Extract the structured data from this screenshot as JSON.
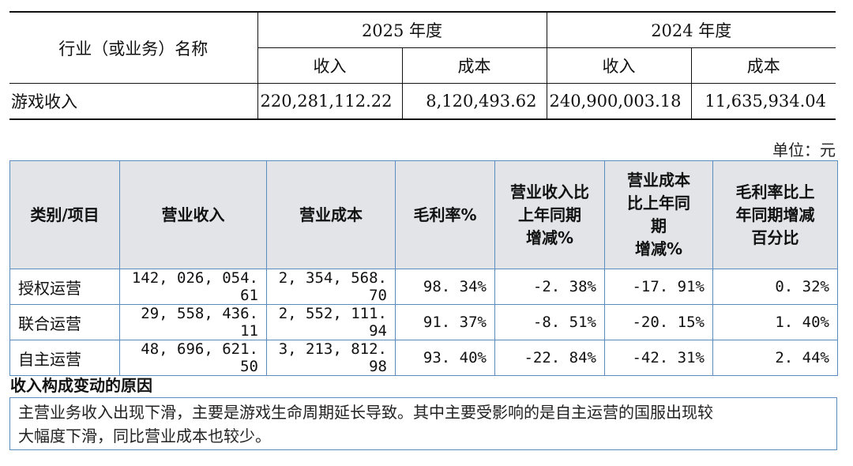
{
  "table1": {
    "row_header": "行业（或业务）名称",
    "years": [
      "2025 年度",
      "2024 年度"
    ],
    "sub_headers": [
      "收入",
      "成本",
      "收入",
      "成本"
    ],
    "rows": [
      {
        "name": "游戏收入",
        "values": [
          "220,281,112.22",
          "8,120,493.62",
          "240,900,003.18",
          "11,635,934.04"
        ]
      }
    ]
  },
  "unit_label": "单位：元",
  "table2": {
    "headers": [
      [
        "类别/项目"
      ],
      [
        "营业收入"
      ],
      [
        "营业成本"
      ],
      [
        "毛利率%"
      ],
      [
        "营业收入比",
        "上年同期",
        "增减%"
      ],
      [
        "营业成本",
        "比上年同",
        "期",
        "增减%"
      ],
      [
        "毛利率比上",
        "年同期增减",
        "百分比"
      ]
    ],
    "rows": [
      {
        "category": "授权运营",
        "values": [
          "142, 026, 054. 61",
          "2, 354, 568. 70",
          "98. 34%",
          "-2. 38%",
          "-17. 91%",
          "0. 32%"
        ]
      },
      {
        "category": "联合运营",
        "values": [
          "29, 558, 436. 11",
          "2, 552, 111. 94",
          "91. 37%",
          "-8. 51%",
          "-20. 15%",
          "1. 40%"
        ]
      },
      {
        "category": "自主运营",
        "values": [
          "48, 696, 621. 50",
          "3, 213, 812. 98",
          "93. 40%",
          "-22. 84%",
          "-42. 31%",
          "2. 44%"
        ]
      }
    ]
  },
  "reason": {
    "title": "收入构成变动的原因",
    "lines": [
      "主营业务收入出现下滑，主要是游戏生命周期延长导致。其中主要受影响的是自主运营的国服出现较",
      "大幅度下滑，同比营业成本也较少。"
    ]
  }
}
